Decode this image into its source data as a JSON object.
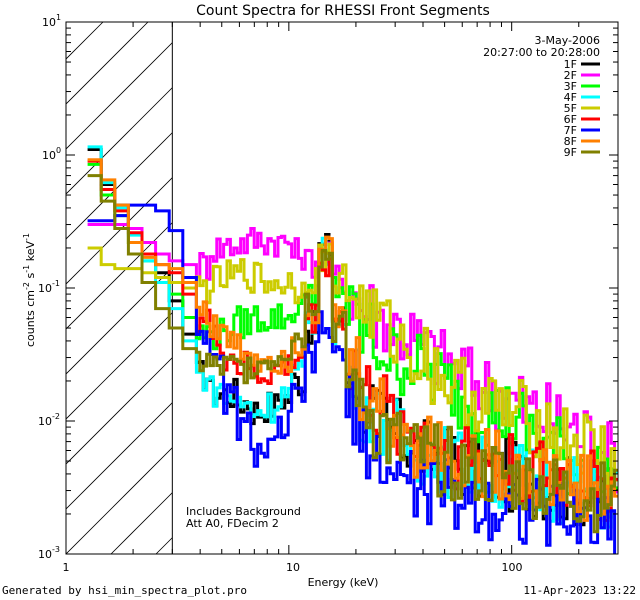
{
  "chart_data": {
    "type": "line",
    "title": "Count Spectra for RHESSI Front Segments",
    "xlabel": "Energy (keV)",
    "ylabel_parts": [
      "counts cm",
      "-2",
      " s",
      "-1",
      " keV",
      "-1"
    ],
    "x_scale": "log",
    "y_scale": "log",
    "xlim": [
      1,
      300
    ],
    "ylim": [
      0.001,
      10
    ],
    "x_tick_labels": [
      "1",
      "10",
      "100"
    ],
    "y_tick_labels": [
      {
        "base": "10",
        "exp": "-3"
      },
      {
        "base": "10",
        "exp": "-2"
      },
      {
        "base": "10",
        "exp": "-1"
      },
      {
        "base": "10",
        "exp": "0"
      },
      {
        "base": "10",
        "exp": "1"
      }
    ],
    "shaded_region": {
      "from": 1,
      "to": 3
    },
    "date": "3-May-2006",
    "time_range": "20:27:00 to 20:28:00",
    "notes": [
      "Includes Background",
      "Att A0, FDecim 2"
    ],
    "series": [
      {
        "name": "1F",
        "color": "#000000",
        "values": [
          1.1,
          0.6,
          0.42,
          0.28,
          0.18,
          0.13,
          0.08,
          0.045,
          0.022,
          0.016,
          0.016,
          0.014,
          0.012,
          0.013,
          0.015,
          0.02,
          0.05,
          0.2,
          0.06,
          0.022,
          0.014,
          0.01,
          0.008,
          0.007,
          0.006,
          0.0055,
          0.005,
          0.0048,
          0.0045,
          0.0042,
          0.004,
          0.0038,
          0.0036,
          0.0034,
          0.0032,
          0.003,
          0.0029,
          0.0028,
          0.0027
        ]
      },
      {
        "name": "2F",
        "color": "#ff00ff",
        "values": [
          0.3,
          0.3,
          0.3,
          0.28,
          0.22,
          0.18,
          0.16,
          0.15,
          0.15,
          0.2,
          0.21,
          0.22,
          0.23,
          0.23,
          0.22,
          0.18,
          0.16,
          0.17,
          0.12,
          0.09,
          0.07,
          0.06,
          0.052,
          0.045,
          0.038,
          0.032,
          0.028,
          0.024,
          0.02,
          0.018,
          0.016,
          0.014,
          0.012,
          0.011,
          0.01,
          0.009,
          0.008,
          0.006,
          0.0055
        ]
      },
      {
        "name": "3F",
        "color": "#00ff00",
        "values": [
          0.85,
          0.5,
          0.35,
          0.22,
          0.16,
          0.12,
          0.09,
          0.06,
          0.045,
          0.045,
          0.05,
          0.055,
          0.06,
          0.06,
          0.06,
          0.07,
          0.1,
          0.16,
          0.1,
          0.06,
          0.045,
          0.035,
          0.03,
          0.028,
          0.025,
          0.022,
          0.018,
          0.015,
          0.013,
          0.012,
          0.011,
          0.01,
          0.008,
          0.007,
          0.006,
          0.005,
          0.0045,
          0.004,
          0.0035
        ]
      },
      {
        "name": "4F",
        "color": "#00ffff",
        "values": [
          1.15,
          0.62,
          0.4,
          0.25,
          0.16,
          0.11,
          0.07,
          0.04,
          0.022,
          0.017,
          0.015,
          0.013,
          0.012,
          0.013,
          0.016,
          0.022,
          0.06,
          0.18,
          0.05,
          0.02,
          0.013,
          0.01,
          0.008,
          0.007,
          0.006,
          0.0055,
          0.005,
          0.0048,
          0.0045,
          0.0042,
          0.004,
          0.0038,
          0.0036,
          0.0034,
          0.0032,
          0.003,
          0.0029,
          0.0028,
          0.0027
        ]
      },
      {
        "name": "5F",
        "color": "#cccc00",
        "values": [
          0.2,
          0.15,
          0.14,
          0.14,
          0.13,
          0.12,
          0.11,
          0.1,
          0.1,
          0.11,
          0.12,
          0.13,
          0.12,
          0.11,
          0.11,
          0.1,
          0.12,
          0.17,
          0.12,
          0.09,
          0.07,
          0.055,
          0.045,
          0.035,
          0.03,
          0.025,
          0.02,
          0.017,
          0.015,
          0.013,
          0.012,
          0.011,
          0.01,
          0.009,
          0.008,
          0.007,
          0.0065,
          0.006,
          0.005
        ]
      },
      {
        "name": "6F",
        "color": "#ff0000",
        "values": [
          0.9,
          0.55,
          0.38,
          0.26,
          0.18,
          0.15,
          0.13,
          0.09,
          0.06,
          0.04,
          0.03,
          0.025,
          0.022,
          0.023,
          0.025,
          0.03,
          0.06,
          0.16,
          0.06,
          0.025,
          0.016,
          0.012,
          0.01,
          0.009,
          0.008,
          0.007,
          0.006,
          0.0058,
          0.0055,
          0.005,
          0.0048,
          0.0045,
          0.0042,
          0.004,
          0.0038,
          0.0036,
          0.0034,
          0.0032,
          0.003
        ]
      },
      {
        "name": "7F",
        "color": "#0000ff",
        "values": [
          0.32,
          0.32,
          0.35,
          0.42,
          0.42,
          0.38,
          0.27,
          0.12,
          0.05,
          0.025,
          0.015,
          0.009,
          0.006,
          0.006,
          0.009,
          0.015,
          0.03,
          0.05,
          0.03,
          0.012,
          0.007,
          0.005,
          0.004,
          0.0035,
          0.0032,
          0.003,
          0.0028,
          0.0026,
          0.0025,
          0.0024,
          0.0023,
          0.0022,
          0.0021,
          0.002,
          0.002,
          0.0019,
          0.0018,
          0.0018,
          0.0017
        ]
      },
      {
        "name": "8F",
        "color": "#ff8000",
        "values": [
          0.92,
          0.65,
          0.42,
          0.22,
          0.17,
          0.15,
          0.14,
          0.11,
          0.07,
          0.05,
          0.04,
          0.035,
          0.03,
          0.03,
          0.03,
          0.04,
          0.07,
          0.19,
          0.06,
          0.025,
          0.016,
          0.012,
          0.01,
          0.008,
          0.007,
          0.0065,
          0.006,
          0.0055,
          0.005,
          0.0048,
          0.0045,
          0.0042,
          0.004,
          0.0038,
          0.0036,
          0.0034,
          0.0032,
          0.003,
          0.0028
        ]
      },
      {
        "name": "9F",
        "color": "#808000",
        "values": [
          0.7,
          0.45,
          0.28,
          0.18,
          0.11,
          0.07,
          0.05,
          0.035,
          0.028,
          0.025,
          0.025,
          0.025,
          0.028,
          0.03,
          0.035,
          0.045,
          0.08,
          0.18,
          0.05,
          0.02,
          0.012,
          0.009,
          0.007,
          0.006,
          0.0055,
          0.005,
          0.0048,
          0.0045,
          0.0042,
          0.004,
          0.0038,
          0.0036,
          0.0034,
          0.0032,
          0.003,
          0.0029,
          0.0028,
          0.0027,
          0.0026
        ]
      }
    ]
  },
  "footer": {
    "left": "Generated by hsi_min_spectra_plot.pro",
    "right": "11-Apr-2023 13:22"
  }
}
